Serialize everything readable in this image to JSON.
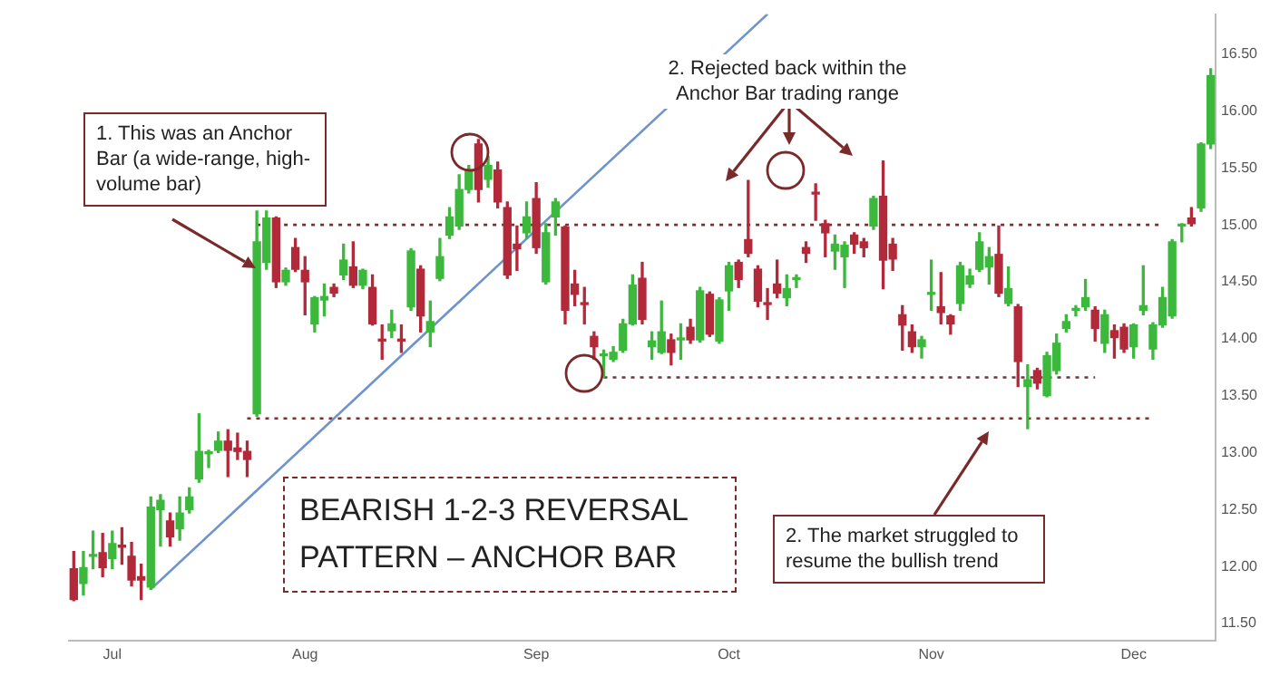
{
  "chart_data": {
    "type": "candlestick",
    "title": "BEARISH 1-2-3 REVERSAL PATTERN – ANCHOR BAR",
    "annotations": [
      "1. This was an Anchor Bar (a wide-range, high-volume bar)",
      "2. Rejected back within the Anchor Bar trading range",
      "2. The market struggled to resume the bullish trend"
    ],
    "categories": [
      null,
      null,
      null,
      null,
      "Jul",
      null,
      null,
      null,
      null,
      null,
      null,
      null,
      null,
      null,
      null,
      null,
      null,
      null,
      null,
      null,
      null,
      null,
      null,
      null,
      "Aug",
      null,
      null,
      null,
      null,
      null,
      null,
      null,
      null,
      null,
      null,
      null,
      null,
      null,
      null,
      null,
      null,
      null,
      null,
      null,
      null,
      null,
      null,
      null,
      "Sep",
      null,
      null,
      null,
      null,
      null,
      null,
      null,
      null,
      null,
      null,
      null,
      null,
      null,
      null,
      null,
      null,
      null,
      null,
      null,
      "Oct",
      null,
      null,
      null,
      null,
      null,
      null,
      null,
      null,
      null,
      null,
      null,
      null,
      null,
      null,
      null,
      null,
      null,
      null,
      null,
      null,
      "Nov",
      null,
      null,
      null,
      null,
      null,
      null,
      null,
      null,
      null,
      null,
      null,
      null,
      null,
      null,
      null,
      null,
      null,
      null,
      null,
      null,
      "Dec",
      null,
      null,
      null,
      null,
      null,
      null,
      null,
      null
    ],
    "ohlc": [
      [
        11.98,
        12.13,
        11.7,
        11.71
      ],
      [
        11.85,
        12.13,
        11.75,
        11.99
      ],
      [
        12.09,
        12.31,
        11.98,
        12.1
      ],
      [
        12.12,
        12.29,
        11.91,
        11.99
      ],
      [
        12.07,
        12.31,
        11.98,
        12.2
      ],
      [
        12.18,
        12.34,
        12.02,
        12.17
      ],
      [
        12.09,
        12.21,
        11.83,
        11.88
      ],
      [
        11.91,
        12.02,
        11.71,
        11.88
      ],
      [
        11.82,
        12.61,
        11.8,
        12.52
      ],
      [
        12.5,
        12.63,
        12.18,
        12.58
      ],
      [
        12.4,
        12.47,
        12.18,
        12.26
      ],
      [
        12.33,
        12.61,
        12.23,
        12.47
      ],
      [
        12.5,
        12.69,
        12.47,
        12.61
      ],
      [
        12.77,
        13.34,
        12.74,
        13.01
      ],
      [
        12.99,
        13.02,
        12.87,
        13.0
      ],
      [
        13.02,
        13.18,
        13.0,
        13.1
      ],
      [
        13.1,
        13.2,
        12.79,
        13.02
      ],
      [
        13.04,
        13.17,
        12.94,
        13.01
      ],
      [
        13.01,
        13.1,
        12.79,
        12.94
      ],
      [
        13.34,
        15.12,
        13.32,
        14.85
      ],
      [
        14.67,
        15.12,
        14.61,
        15.06
      ],
      [
        15.06,
        15.07,
        14.45,
        14.5
      ],
      [
        14.5,
        14.62,
        14.47,
        14.6
      ],
      [
        14.8,
        14.88,
        14.59,
        14.61
      ],
      [
        14.6,
        14.72,
        14.21,
        14.5
      ],
      [
        14.13,
        14.37,
        14.06,
        14.36
      ],
      [
        14.34,
        14.48,
        14.2,
        14.37
      ],
      [
        14.45,
        14.48,
        14.37,
        14.4
      ],
      [
        14.56,
        14.83,
        14.52,
        14.69
      ],
      [
        14.63,
        14.85,
        14.45,
        14.47
      ],
      [
        14.47,
        14.61,
        14.44,
        14.6
      ],
      [
        14.45,
        14.56,
        14.12,
        14.13
      ],
      [
        13.99,
        14.12,
        13.82,
        13.98
      ],
      [
        14.07,
        14.25,
        14.01,
        14.13
      ],
      [
        13.99,
        14.12,
        13.88,
        13.98
      ],
      [
        14.28,
        14.79,
        14.25,
        14.77
      ],
      [
        14.61,
        14.64,
        14.06,
        14.2
      ],
      [
        14.06,
        14.33,
        13.93,
        14.15
      ],
      [
        14.53,
        14.88,
        14.51,
        14.72
      ],
      [
        14.91,
        15.15,
        14.88,
        15.07
      ],
      [
        14.99,
        15.44,
        14.96,
        15.31
      ],
      [
        15.31,
        15.52,
        15.28,
        15.48
      ],
      [
        15.71,
        15.75,
        15.2,
        15.31
      ],
      [
        15.4,
        15.6,
        15.33,
        15.52
      ],
      [
        15.48,
        15.55,
        15.15,
        15.2
      ],
      [
        15.15,
        15.2,
        14.53,
        14.56
      ],
      [
        14.83,
        14.99,
        14.6,
        14.79
      ],
      [
        14.93,
        15.2,
        14.88,
        15.07
      ],
      [
        15.23,
        15.37,
        14.75,
        14.8
      ],
      [
        14.5,
        15.01,
        14.48,
        14.93
      ],
      [
        15.07,
        15.23,
        14.91,
        15.2
      ],
      [
        14.98,
        14.99,
        14.13,
        14.25
      ],
      [
        14.48,
        14.6,
        14.29,
        14.39
      ],
      [
        14.31,
        14.45,
        14.13,
        14.3
      ],
      [
        14.02,
        14.06,
        13.82,
        13.93
      ],
      [
        13.85,
        13.9,
        13.66,
        13.86
      ],
      [
        13.82,
        13.93,
        13.8,
        13.88
      ],
      [
        13.9,
        14.17,
        13.88,
        14.13
      ],
      [
        14.13,
        14.56,
        14.12,
        14.47
      ],
      [
        14.53,
        14.67,
        14.13,
        14.17
      ],
      [
        13.93,
        14.06,
        13.82,
        13.98
      ],
      [
        13.88,
        14.33,
        13.87,
        14.06
      ],
      [
        13.99,
        14.04,
        13.77,
        13.88
      ],
      [
        13.99,
        14.13,
        13.82,
        14.0
      ],
      [
        14.1,
        14.17,
        13.96,
        13.99
      ],
      [
        13.99,
        14.45,
        13.97,
        14.42
      ],
      [
        14.39,
        14.41,
        14.02,
        14.04
      ],
      [
        13.98,
        14.36,
        13.96,
        14.34
      ],
      [
        14.42,
        14.67,
        14.25,
        14.64
      ],
      [
        14.67,
        14.69,
        14.45,
        14.52
      ],
      [
        14.87,
        15.39,
        14.72,
        14.75
      ],
      [
        14.61,
        14.64,
        14.28,
        14.33
      ],
      [
        14.31,
        14.44,
        14.17,
        14.3
      ],
      [
        14.48,
        14.69,
        14.36,
        14.4
      ],
      [
        14.36,
        14.56,
        14.29,
        14.44
      ],
      [
        14.52,
        14.56,
        14.45,
        14.53
      ],
      [
        14.8,
        14.85,
        14.67,
        14.75
      ],
      [
        15.28,
        15.36,
        15.04,
        15.27
      ],
      [
        15.01,
        15.04,
        14.72,
        14.93
      ],
      [
        14.77,
        14.91,
        14.61,
        14.83
      ],
      [
        14.72,
        14.85,
        14.45,
        14.82
      ],
      [
        14.91,
        14.93,
        14.75,
        14.83
      ],
      [
        14.85,
        14.88,
        14.72,
        14.8
      ],
      [
        14.99,
        15.25,
        14.96,
        15.23
      ],
      [
        15.25,
        15.56,
        14.44,
        14.69
      ],
      [
        14.83,
        14.88,
        14.6,
        14.7
      ],
      [
        14.21,
        14.29,
        13.9,
        14.12
      ],
      [
        14.06,
        14.12,
        13.88,
        13.93
      ],
      [
        13.93,
        14.02,
        13.83,
        13.99
      ],
      [
        14.39,
        14.69,
        14.25,
        14.4
      ],
      [
        14.28,
        14.58,
        14.13,
        14.23
      ],
      [
        14.2,
        14.21,
        14.04,
        14.13
      ],
      [
        14.31,
        14.67,
        14.25,
        14.64
      ],
      [
        14.48,
        14.61,
        14.45,
        14.55
      ],
      [
        14.61,
        14.93,
        14.59,
        14.85
      ],
      [
        14.63,
        14.8,
        14.48,
        14.72
      ],
      [
        14.74,
        14.99,
        14.37,
        14.4
      ],
      [
        14.31,
        14.63,
        14.29,
        14.44
      ],
      [
        14.28,
        14.3,
        13.58,
        13.8
      ],
      [
        13.58,
        13.77,
        13.21,
        13.64
      ],
      [
        13.72,
        13.74,
        13.56,
        13.61
      ],
      [
        13.5,
        13.88,
        13.49,
        13.85
      ],
      [
        13.72,
        14.04,
        13.69,
        13.96
      ],
      [
        14.09,
        14.21,
        14.06,
        14.15
      ],
      [
        14.25,
        14.29,
        14.2,
        14.26
      ],
      [
        14.28,
        14.52,
        14.25,
        14.36
      ],
      [
        14.25,
        14.28,
        13.98,
        14.09
      ],
      [
        13.96,
        14.25,
        13.88,
        14.21
      ],
      [
        14.07,
        14.12,
        13.83,
        14.01
      ],
      [
        14.1,
        14.13,
        13.88,
        13.91
      ],
      [
        13.93,
        14.13,
        13.83,
        14.12
      ],
      [
        14.25,
        14.64,
        14.21,
        14.29
      ],
      [
        13.91,
        14.14,
        13.82,
        14.12
      ],
      [
        14.12,
        14.45,
        14.1,
        14.36
      ],
      [
        14.2,
        14.87,
        14.18,
        14.85
      ],
      [
        14.99,
        15.01,
        14.85,
        15.0
      ],
      [
        15.06,
        15.15,
        14.99,
        15.01
      ],
      [
        15.15,
        15.72,
        15.12,
        15.71
      ],
      [
        15.71,
        16.37,
        15.67,
        16.31
      ]
    ],
    "colors": [
      "#b22a3a",
      "#3cb83c",
      "#3cb83c",
      "#b22a3a",
      "#3cb83c",
      "#b22a3a",
      "#b22a3a",
      "#b22a3a",
      "#3cb83c",
      "#3cb83c",
      "#b22a3a",
      "#3cb83c",
      "#3cb83c",
      "#3cb83c",
      "#3cb83c",
      "#3cb83c",
      "#b22a3a",
      "#b22a3a",
      "#b22a3a",
      "#3cb83c",
      "#3cb83c",
      "#b22a3a",
      "#3cb83c",
      "#b22a3a",
      "#b22a3a",
      "#3cb83c",
      "#3cb83c",
      "#b22a3a",
      "#3cb83c",
      "#b22a3a",
      "#3cb83c",
      "#b22a3a",
      "#b22a3a",
      "#3cb83c",
      "#b22a3a",
      "#3cb83c",
      "#b22a3a",
      "#3cb83c",
      "#3cb83c",
      "#3cb83c",
      "#3cb83c",
      "#3cb83c",
      "#b22a3a",
      "#3cb83c",
      "#b22a3a",
      "#b22a3a",
      "#b22a3a",
      "#3cb83c",
      "#b22a3a",
      "#3cb83c",
      "#3cb83c",
      "#b22a3a",
      "#b22a3a",
      "#b22a3a",
      "#b22a3a",
      "#3cb83c",
      "#3cb83c",
      "#3cb83c",
      "#3cb83c",
      "#b22a3a",
      "#3cb83c",
      "#3cb83c",
      "#b22a3a",
      "#3cb83c",
      "#b22a3a",
      "#3cb83c",
      "#b22a3a",
      "#3cb83c",
      "#3cb83c",
      "#b22a3a",
      "#b22a3a",
      "#b22a3a",
      "#b22a3a",
      "#b22a3a",
      "#3cb83c",
      "#3cb83c",
      "#b22a3a",
      "#b22a3a",
      "#b22a3a",
      "#3cb83c",
      "#3cb83c",
      "#b22a3a",
      "#b22a3a",
      "#3cb83c",
      "#b22a3a",
      "#b22a3a",
      "#b22a3a",
      "#b22a3a",
      "#3cb83c",
      "#3cb83c",
      "#b22a3a",
      "#b22a3a",
      "#3cb83c",
      "#3cb83c",
      "#3cb83c",
      "#3cb83c",
      "#b22a3a",
      "#3cb83c",
      "#b22a3a",
      "#3cb83c",
      "#b22a3a",
      "#3cb83c",
      "#3cb83c",
      "#3cb83c",
      "#3cb83c",
      "#3cb83c",
      "#b22a3a",
      "#3cb83c",
      "#b22a3a",
      "#b22a3a",
      "#3cb83c",
      "#3cb83c",
      "#3cb83c",
      "#3cb83c",
      "#3cb83c",
      "#3cb83c",
      "#b22a3a",
      "#3cb83c",
      "#3cb83c"
    ],
    "series": [
      {
        "type": "line",
        "color": "#6f94cc",
        "values": [
          null,
          null,
          null,
          null,
          null,
          null,
          null,
          null,
          11.8,
          null,
          null,
          null,
          null,
          null,
          null,
          null,
          null,
          null,
          null,
          null,
          null,
          null,
          null,
          null,
          null,
          null,
          null,
          null,
          null,
          null,
          null,
          null,
          null,
          null,
          null,
          null,
          null,
          null,
          null,
          null,
          null,
          null,
          null,
          null,
          null,
          null,
          null,
          null,
          null,
          null,
          null,
          null,
          null,
          null,
          null,
          null,
          null,
          null,
          null,
          null,
          null,
          null,
          null,
          null,
          null,
          null,
          null,
          null,
          null,
          null,
          null,
          null,
          16.85,
          null,
          null,
          null,
          null,
          null,
          null,
          null,
          null,
          null,
          null,
          null,
          null,
          null,
          null,
          null,
          null,
          null,
          null,
          null,
          null,
          null,
          null,
          null,
          null,
          null,
          null,
          null,
          null,
          null,
          null,
          null,
          null,
          null,
          null,
          null,
          null,
          null,
          null,
          null,
          null,
          null,
          null,
          null,
          null,
          null,
          null
        ]
      },
      {
        "type": "line",
        "color": "#7a3030",
        "line_style": "dotted",
        "values": [
          null,
          null,
          null,
          null,
          null,
          null,
          null,
          null,
          null,
          null,
          null,
          null,
          null,
          null,
          null,
          null,
          null,
          null,
          null,
          15.0,
          null,
          null,
          null,
          null,
          null,
          null,
          null,
          null,
          null,
          null,
          null,
          null,
          null,
          null,
          null,
          null,
          null,
          null,
          null,
          null,
          null,
          null,
          null,
          null,
          null,
          null,
          null,
          null,
          null,
          null,
          null,
          null,
          null,
          null,
          null,
          null,
          null,
          null,
          null,
          null,
          null,
          null,
          null,
          null,
          null,
          null,
          null,
          null,
          null,
          null,
          null,
          null,
          null,
          null,
          null,
          null,
          null,
          null,
          null,
          null,
          null,
          null,
          null,
          null,
          null,
          null,
          null,
          null,
          null,
          null,
          null,
          null,
          null,
          null,
          null,
          null,
          null,
          null,
          null,
          null,
          null,
          null,
          null,
          null,
          null,
          null,
          null,
          null,
          null,
          null,
          null,
          null,
          null,
          15.0,
          null,
          null,
          null,
          null,
          null
        ]
      },
      {
        "type": "line",
        "color": "#7a3030",
        "line_style": "dotted",
        "values": [
          null,
          null,
          null,
          null,
          null,
          null,
          null,
          null,
          null,
          null,
          null,
          null,
          null,
          null,
          null,
          null,
          null,
          null,
          13.3,
          null,
          null,
          null,
          null,
          null,
          null,
          null,
          null,
          null,
          null,
          null,
          null,
          null,
          null,
          null,
          null,
          null,
          null,
          null,
          null,
          null,
          null,
          null,
          null,
          null,
          null,
          null,
          null,
          null,
          null,
          null,
          null,
          null,
          null,
          null,
          null,
          null,
          null,
          null,
          null,
          null,
          null,
          null,
          null,
          null,
          null,
          null,
          null,
          null,
          null,
          null,
          null,
          null,
          null,
          null,
          null,
          null,
          null,
          null,
          null,
          null,
          null,
          null,
          null,
          null,
          null,
          null,
          null,
          null,
          null,
          null,
          null,
          null,
          null,
          null,
          null,
          null,
          null,
          null,
          null,
          null,
          null,
          null,
          null,
          null,
          null,
          null,
          null,
          null,
          null,
          null,
          null,
          null,
          13.3,
          null,
          null,
          null,
          null,
          null,
          null
        ]
      },
      {
        "type": "line",
        "color": "#7a3030",
        "line_style": "dotted",
        "values": [
          null,
          null,
          null,
          null,
          null,
          null,
          null,
          null,
          null,
          null,
          null,
          null,
          null,
          null,
          null,
          null,
          null,
          null,
          null,
          null,
          null,
          null,
          null,
          null,
          null,
          null,
          null,
          null,
          null,
          null,
          null,
          null,
          null,
          null,
          null,
          null,
          null,
          null,
          null,
          null,
          null,
          null,
          null,
          null,
          null,
          null,
          null,
          null,
          null,
          null,
          null,
          null,
          null,
          null,
          null,
          13.66,
          null,
          null,
          null,
          null,
          null,
          null,
          null,
          null,
          null,
          null,
          null,
          null,
          null,
          null,
          null,
          null,
          null,
          null,
          null,
          null,
          null,
          null,
          null,
          null,
          null,
          null,
          null,
          null,
          null,
          null,
          null,
          null,
          null,
          null,
          null,
          null,
          null,
          null,
          null,
          null,
          null,
          null,
          null,
          null,
          null,
          null,
          null,
          null,
          null,
          null,
          13.66,
          null,
          null,
          null,
          null,
          null,
          null,
          null,
          null,
          null,
          null,
          null,
          null
        ]
      }
    ],
    "ylim": [
      11.35,
      16.85
    ],
    "yticks": [
      {
        "value": 11.5,
        "label": "11.50"
      },
      {
        "value": 12,
        "label": "12.00"
      },
      {
        "value": 12.5,
        "label": "12.50"
      },
      {
        "value": 13,
        "label": "13.00"
      },
      {
        "value": 13.5,
        "label": "13.50"
      },
      {
        "value": 14,
        "label": "14.00"
      },
      {
        "value": 14.5,
        "label": "14.50"
      },
      {
        "value": 15,
        "label": "15.00"
      },
      {
        "value": 15.5,
        "label": "15.50"
      },
      {
        "value": 16,
        "label": "16.00"
      },
      {
        "value": 16.5,
        "label": "16.50"
      }
    ],
    "grid": false,
    "legend": false
  }
}
